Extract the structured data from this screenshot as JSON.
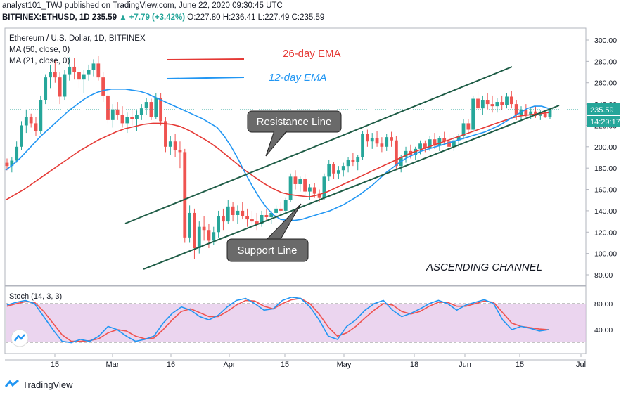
{
  "header": {
    "line1": "analyst101_TWJ published on TradingView.com, June 22, 2020 09:30:45 UTC",
    "symbol": "BITFINEX:ETHUSD, 1D",
    "price": "235.59",
    "change": "▲ +7.79 (+3.42%)",
    "ohlc": "O:227.80 H:236.41 L:227.49 C:235.59"
  },
  "chart": {
    "title": "Ethereum / U.S. Dollar, 1D, BITFINEX",
    "ma50": "MA (50, close, 0)",
    "ma21": "MA (21, close, 0)",
    "price_tag": "235.59",
    "time_tag": "14:29:17",
    "legend_26": "26-day EMA",
    "legend_12": "12-day EMA",
    "resistance_label": "Resistance Line",
    "support_label": "Support Line",
    "pattern_label": "ASCENDING CHANNEL",
    "stoch_label": "Stoch (14, 3, 3)",
    "colors": {
      "ema26": "#e53935",
      "ema12": "#2196f3",
      "channel": "#1e5c46",
      "up": "#26a69a",
      "down": "#ef5350",
      "stoch_k": "#2196f3",
      "stoch_d": "#ef5350",
      "stoch_band": "#e1bee7"
    }
  },
  "footer": {
    "brand": "TradingView"
  },
  "chart_data": {
    "type": "candlestick",
    "ylim": [
      70,
      310
    ],
    "y_ticks": [
      80,
      100,
      120,
      140,
      160,
      180,
      200,
      220,
      240,
      260,
      280,
      300
    ],
    "x_ticks": [
      "15",
      "Mar",
      "16",
      "Apr",
      "15",
      "May",
      "18",
      "Jun",
      "15",
      "Jul"
    ],
    "stoch_ticks": [
      40,
      80
    ],
    "candles": [
      [
        185,
        189,
        178,
        182
      ],
      [
        182,
        190,
        176,
        187
      ],
      [
        187,
        205,
        185,
        200
      ],
      [
        200,
        224,
        197,
        220
      ],
      [
        220,
        235,
        213,
        228
      ],
      [
        228,
        231,
        218,
        222
      ],
      [
        222,
        228,
        210,
        215
      ],
      [
        215,
        248,
        212,
        244
      ],
      [
        244,
        268,
        240,
        265
      ],
      [
        265,
        277,
        255,
        270
      ],
      [
        270,
        281,
        260,
        265
      ],
      [
        265,
        270,
        240,
        247
      ],
      [
        247,
        272,
        244,
        268
      ],
      [
        268,
        284,
        262,
        275
      ],
      [
        275,
        283,
        263,
        270
      ],
      [
        270,
        276,
        255,
        263
      ],
      [
        263,
        272,
        250,
        268
      ],
      [
        268,
        277,
        262,
        272
      ],
      [
        272,
        282,
        266,
        278
      ],
      [
        278,
        285,
        262,
        265
      ],
      [
        265,
        270,
        242,
        248
      ],
      [
        248,
        256,
        222,
        225
      ],
      [
        225,
        240,
        218,
        235
      ],
      [
        235,
        242,
        225,
        230
      ],
      [
        230,
        238,
        218,
        222
      ],
      [
        222,
        232,
        213,
        228
      ],
      [
        228,
        235,
        220,
        226
      ],
      [
        226,
        234,
        215,
        230
      ],
      [
        230,
        240,
        225,
        236
      ],
      [
        236,
        246,
        230,
        242
      ],
      [
        242,
        245,
        225,
        228
      ],
      [
        228,
        250,
        226,
        246
      ],
      [
        246,
        250,
        220,
        224
      ],
      [
        224,
        228,
        195,
        200
      ],
      [
        200,
        210,
        192,
        205
      ],
      [
        205,
        212,
        190,
        197
      ],
      [
        197,
        205,
        180,
        195
      ],
      [
        195,
        198,
        110,
        115
      ],
      [
        115,
        145,
        110,
        138
      ],
      [
        138,
        142,
        95,
        105
      ],
      [
        105,
        130,
        100,
        125
      ],
      [
        125,
        135,
        112,
        122
      ],
      [
        122,
        128,
        105,
        112
      ],
      [
        112,
        125,
        108,
        120
      ],
      [
        120,
        140,
        115,
        135
      ],
      [
        135,
        142,
        122,
        130
      ],
      [
        130,
        150,
        128,
        144
      ],
      [
        144,
        148,
        130,
        136
      ],
      [
        136,
        145,
        128,
        140
      ],
      [
        140,
        148,
        132,
        135
      ],
      [
        135,
        142,
        125,
        132
      ],
      [
        132,
        140,
        125,
        130
      ],
      [
        130,
        138,
        122,
        128
      ],
      [
        128,
        140,
        125,
        136
      ],
      [
        136,
        142,
        130,
        134
      ],
      [
        134,
        140,
        128,
        138
      ],
      [
        138,
        145,
        133,
        142
      ],
      [
        142,
        148,
        136,
        140
      ],
      [
        140,
        152,
        138,
        150
      ],
      [
        150,
        175,
        148,
        172
      ],
      [
        172,
        178,
        160,
        165
      ],
      [
        165,
        172,
        158,
        170
      ],
      [
        170,
        174,
        155,
        158
      ],
      [
        158,
        165,
        150,
        162
      ],
      [
        162,
        166,
        152,
        156
      ],
      [
        156,
        160,
        148,
        152
      ],
      [
        152,
        175,
        150,
        172
      ],
      [
        172,
        188,
        168,
        184
      ],
      [
        184,
        186,
        170,
        175
      ],
      [
        175,
        182,
        170,
        178
      ],
      [
        178,
        185,
        172,
        182
      ],
      [
        182,
        190,
        176,
        188
      ],
      [
        188,
        194,
        182,
        186
      ],
      [
        186,
        192,
        178,
        190
      ],
      [
        190,
        215,
        188,
        212
      ],
      [
        212,
        216,
        200,
        205
      ],
      [
        205,
        213,
        198,
        208
      ],
      [
        208,
        215,
        200,
        203
      ],
      [
        203,
        209,
        195,
        200
      ],
      [
        200,
        212,
        196,
        209
      ],
      [
        209,
        214,
        200,
        206
      ],
      [
        206,
        210,
        178,
        182
      ],
      [
        182,
        192,
        176,
        190
      ],
      [
        190,
        200,
        185,
        196
      ],
      [
        196,
        202,
        189,
        192
      ],
      [
        192,
        200,
        188,
        198
      ],
      [
        198,
        206,
        193,
        203
      ],
      [
        203,
        206,
        195,
        199
      ],
      [
        199,
        210,
        196,
        207
      ],
      [
        207,
        213,
        198,
        201
      ],
      [
        201,
        210,
        196,
        208
      ],
      [
        208,
        214,
        202,
        205
      ],
      [
        205,
        212,
        196,
        200
      ],
      [
        200,
        210,
        196,
        206
      ],
      [
        206,
        212,
        200,
        210
      ],
      [
        210,
        226,
        207,
        222
      ],
      [
        222,
        226,
        212,
        216
      ],
      [
        216,
        248,
        214,
        245
      ],
      [
        245,
        252,
        232,
        236
      ],
      [
        236,
        248,
        230,
        244
      ],
      [
        244,
        250,
        235,
        240
      ],
      [
        240,
        248,
        232,
        238
      ],
      [
        238,
        246,
        232,
        242
      ],
      [
        242,
        248,
        235,
        239
      ],
      [
        239,
        250,
        236,
        247
      ],
      [
        247,
        252,
        236,
        240
      ],
      [
        240,
        244,
        225,
        230
      ],
      [
        230,
        238,
        225,
        235
      ],
      [
        235,
        240,
        228,
        230
      ],
      [
        230,
        236,
        226,
        233
      ],
      [
        233,
        238,
        227,
        229
      ],
      [
        229,
        234,
        225,
        231
      ],
      [
        231,
        233,
        227,
        228
      ],
      [
        228,
        236,
        226,
        235
      ]
    ],
    "ema_12": [
      178,
      183,
      189,
      196,
      203,
      210,
      216,
      222,
      228,
      234,
      239,
      244,
      248,
      251,
      253,
      254,
      254,
      254,
      253,
      252,
      250,
      247,
      244,
      241,
      238,
      235,
      232,
      229,
      226,
      222,
      218,
      210,
      200,
      188,
      175,
      163,
      152,
      143,
      136,
      132,
      131,
      131,
      132,
      134,
      136,
      138,
      140,
      143,
      146,
      150,
      154,
      159,
      164,
      170,
      176,
      181,
      186,
      190,
      193,
      196,
      198,
      200,
      202,
      204,
      206,
      208,
      210,
      212,
      214,
      217,
      220,
      224,
      228,
      232,
      236,
      238,
      238,
      236
    ],
    "ema_26": [
      150,
      155,
      160,
      166,
      172,
      178,
      184,
      190,
      196,
      201,
      206,
      210,
      214,
      217,
      219,
      221,
      222,
      222,
      221,
      219,
      215,
      210,
      205,
      199,
      192,
      185,
      178,
      172,
      166,
      161,
      157,
      155,
      154,
      153,
      155,
      158,
      162,
      166,
      170,
      174,
      178,
      182,
      186,
      190,
      194,
      197,
      200,
      203,
      206,
      209,
      212,
      215,
      218,
      221,
      224,
      227,
      229,
      230,
      231,
      232
    ],
    "stoch_k": [
      78,
      82,
      85,
      80,
      60,
      40,
      22,
      20,
      25,
      22,
      30,
      45,
      40,
      30,
      22,
      25,
      30,
      50,
      65,
      75,
      70,
      60,
      55,
      62,
      75,
      85,
      88,
      80,
      70,
      72,
      85,
      90,
      88,
      75,
      55,
      30,
      25,
      45,
      55,
      70,
      80,
      85,
      70,
      60,
      65,
      72,
      80,
      85,
      80,
      70,
      78,
      82,
      86,
      80,
      55,
      40,
      45,
      42,
      38,
      40
    ],
    "stoch_d": [
      76,
      80,
      83,
      82,
      68,
      50,
      32,
      22,
      22,
      23,
      26,
      35,
      40,
      38,
      30,
      26,
      27,
      40,
      55,
      68,
      72,
      66,
      60,
      60,
      68,
      78,
      85,
      84,
      76,
      72,
      80,
      86,
      88,
      80,
      64,
      44,
      30,
      35,
      45,
      58,
      70,
      80,
      78,
      68,
      64,
      68,
      76,
      82,
      82,
      76,
      76,
      80,
      84,
      82,
      66,
      50,
      45,
      43,
      41,
      40
    ]
  }
}
